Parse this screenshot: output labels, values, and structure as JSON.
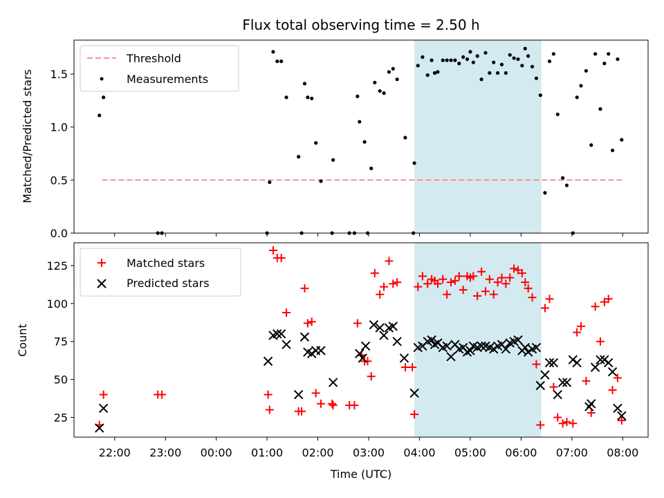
{
  "figure": {
    "title": "Flux total observing time = 2.50 h",
    "xlabel": "Time (UTC)",
    "x_ticks": [
      "22:00",
      "23:00",
      "00:00",
      "01:00",
      "02:00",
      "03:00",
      "04:00",
      "05:00",
      "06:00",
      "07:00",
      "08:00"
    ],
    "x_tick_hours": [
      22,
      23,
      24,
      25,
      26,
      27,
      28,
      29,
      30,
      31,
      32
    ],
    "xlim": [
      21.2,
      32.5
    ],
    "shaded_interval": [
      27.9,
      30.4
    ],
    "colors": {
      "shade": "#d3eaf0",
      "threshold": "#ff7f7f",
      "measurements": "#000000",
      "matched": "#ff0000",
      "predicted": "#000000"
    }
  },
  "chart_data": [
    {
      "type": "scatter",
      "ylabel": "Matched/Predicted stars",
      "ylim": [
        0,
        1.82
      ],
      "y_ticks": [
        "0.0",
        "0.5",
        "1.0",
        "1.5"
      ],
      "y_tick_values": [
        0,
        0.5,
        1.0,
        1.5
      ],
      "legend": [
        "Threshold",
        "Measurements"
      ],
      "legend_placement": "upper-left",
      "threshold": {
        "name": "Threshold",
        "y": 0.5,
        "x_range": [
          21.75,
          32.0
        ]
      },
      "series": [
        {
          "name": "Measurements",
          "x": [
            21.7,
            21.78,
            22.85,
            22.93,
            25.0,
            25.05,
            25.12,
            25.2,
            25.28,
            25.38,
            25.62,
            25.68,
            25.74,
            25.8,
            25.88,
            25.96,
            26.06,
            26.28,
            26.3,
            26.62,
            26.72,
            26.78,
            26.82,
            26.92,
            26.98,
            27.05,
            27.12,
            27.22,
            27.3,
            27.4,
            27.48,
            27.56,
            27.72,
            27.88,
            27.9,
            27.97,
            28.06,
            28.16,
            28.24,
            28.3,
            28.36,
            28.46,
            28.54,
            28.62,
            28.7,
            28.78,
            28.86,
            28.94,
            29.0,
            29.06,
            29.14,
            29.22,
            29.3,
            29.38,
            29.46,
            29.54,
            29.62,
            29.7,
            29.78,
            29.86,
            29.94,
            30.02,
            30.08,
            30.14,
            30.22,
            30.3,
            30.38,
            30.47,
            30.56,
            30.64,
            30.72,
            30.82,
            30.9,
            31.02,
            31.1,
            31.18,
            31.28,
            31.38,
            31.46,
            31.56,
            31.64,
            31.72,
            31.8,
            31.9,
            31.98
          ],
          "y": [
            1.11,
            1.28,
            0.0,
            0.0,
            0.0,
            0.48,
            1.71,
            1.62,
            1.62,
            1.28,
            0.72,
            0.0,
            1.41,
            1.28,
            1.27,
            0.85,
            0.49,
            0.0,
            0.69,
            0.0,
            0.0,
            1.29,
            1.05,
            0.86,
            0.0,
            0.61,
            1.42,
            1.34,
            1.32,
            1.52,
            1.55,
            1.45,
            0.9,
            0.0,
            0.66,
            1.58,
            1.66,
            1.49,
            1.63,
            1.51,
            1.52,
            1.63,
            1.63,
            1.63,
            1.63,
            1.6,
            1.66,
            1.64,
            1.71,
            1.61,
            1.67,
            1.45,
            1.7,
            1.51,
            1.61,
            1.51,
            1.59,
            1.51,
            1.68,
            1.65,
            1.64,
            1.58,
            1.74,
            1.67,
            1.57,
            1.46,
            1.3,
            0.38,
            1.62,
            1.69,
            1.12,
            0.52,
            0.45,
            0.0,
            1.28,
            1.39,
            1.53,
            0.83,
            1.69,
            1.17,
            1.6,
            1.69,
            0.78,
            1.64,
            0.88
          ]
        }
      ]
    },
    {
      "type": "scatter",
      "ylabel": "Count",
      "ylim": [
        12,
        140
      ],
      "y_ticks": [
        "25",
        "50",
        "75",
        "100",
        "125"
      ],
      "y_tick_values": [
        25,
        50,
        75,
        100,
        125
      ],
      "legend": [
        "Matched stars",
        "Predicted stars"
      ],
      "legend_placement": "upper-left",
      "series": [
        {
          "name": "Matched stars",
          "x": [
            21.7,
            21.78,
            22.85,
            22.93,
            25.02,
            25.05,
            25.12,
            25.2,
            25.28,
            25.38,
            25.62,
            25.68,
            25.74,
            25.8,
            25.88,
            25.96,
            26.06,
            26.28,
            26.3,
            26.62,
            26.72,
            26.78,
            26.86,
            26.92,
            26.98,
            27.05,
            27.12,
            27.22,
            27.3,
            27.4,
            27.48,
            27.56,
            27.72,
            27.86,
            27.9,
            27.97,
            28.06,
            28.16,
            28.24,
            28.3,
            28.36,
            28.46,
            28.54,
            28.62,
            28.7,
            28.78,
            28.86,
            28.94,
            29.0,
            29.06,
            29.14,
            29.22,
            29.3,
            29.38,
            29.46,
            29.54,
            29.62,
            29.7,
            29.78,
            29.86,
            29.94,
            30.02,
            30.08,
            30.14,
            30.22,
            30.3,
            30.38,
            30.47,
            30.56,
            30.64,
            30.72,
            30.82,
            30.9,
            31.02,
            31.1,
            31.18,
            31.28,
            31.38,
            31.46,
            31.56,
            31.64,
            31.72,
            31.8,
            31.9,
            31.98
          ],
          "y": [
            20,
            40,
            40,
            40,
            40,
            30,
            135,
            130,
            130,
            94,
            29,
            29,
            110,
            87,
            88,
            41,
            34,
            34,
            33,
            33,
            33,
            87,
            66,
            62,
            62,
            52,
            120,
            106,
            111,
            128,
            113,
            114,
            58,
            58,
            27,
            111,
            118,
            113,
            116,
            115,
            113,
            116,
            106,
            114,
            115,
            118,
            109,
            118,
            117,
            118,
            105,
            121,
            108,
            116,
            106,
            114,
            117,
            113,
            117,
            123,
            122,
            120,
            114,
            110,
            104,
            60,
            20,
            97,
            103,
            45,
            25,
            21,
            22,
            21,
            81,
            85,
            49,
            28,
            98,
            75,
            101,
            103,
            43,
            51,
            23
          ]
        },
        {
          "name": "Predicted stars",
          "x": [
            21.7,
            21.78,
            25.02,
            25.12,
            25.2,
            25.28,
            25.38,
            25.62,
            25.74,
            25.8,
            25.88,
            25.96,
            26.06,
            26.3,
            26.82,
            26.88,
            26.94,
            27.1,
            27.22,
            27.3,
            27.4,
            27.48,
            27.56,
            27.7,
            27.9,
            27.97,
            28.06,
            28.16,
            28.24,
            28.3,
            28.36,
            28.46,
            28.54,
            28.62,
            28.7,
            28.78,
            28.86,
            28.94,
            29.0,
            29.06,
            29.14,
            29.22,
            29.3,
            29.38,
            29.46,
            29.54,
            29.62,
            29.7,
            29.78,
            29.86,
            29.94,
            30.02,
            30.08,
            30.14,
            30.22,
            30.3,
            30.38,
            30.47,
            30.56,
            30.64,
            30.72,
            30.82,
            30.9,
            31.02,
            31.1,
            31.34,
            31.38,
            31.46,
            31.56,
            31.64,
            31.72,
            31.8,
            31.9,
            31.98
          ],
          "y": [
            18,
            31,
            62,
            79,
            80,
            80,
            73,
            40,
            78,
            68,
            67,
            69,
            69,
            48,
            67,
            64,
            72,
            86,
            84,
            79,
            84,
            85,
            75,
            64,
            41,
            71,
            72,
            75,
            76,
            73,
            74,
            71,
            72,
            65,
            73,
            70,
            71,
            68,
            69,
            72,
            71,
            72,
            72,
            71,
            70,
            72,
            73,
            70,
            74,
            75,
            76,
            69,
            71,
            68,
            70,
            71,
            46,
            53,
            61,
            61,
            40,
            48,
            48,
            63,
            61,
            32,
            34,
            58,
            63,
            63,
            61,
            55,
            31,
            26
          ]
        }
      ]
    }
  ]
}
